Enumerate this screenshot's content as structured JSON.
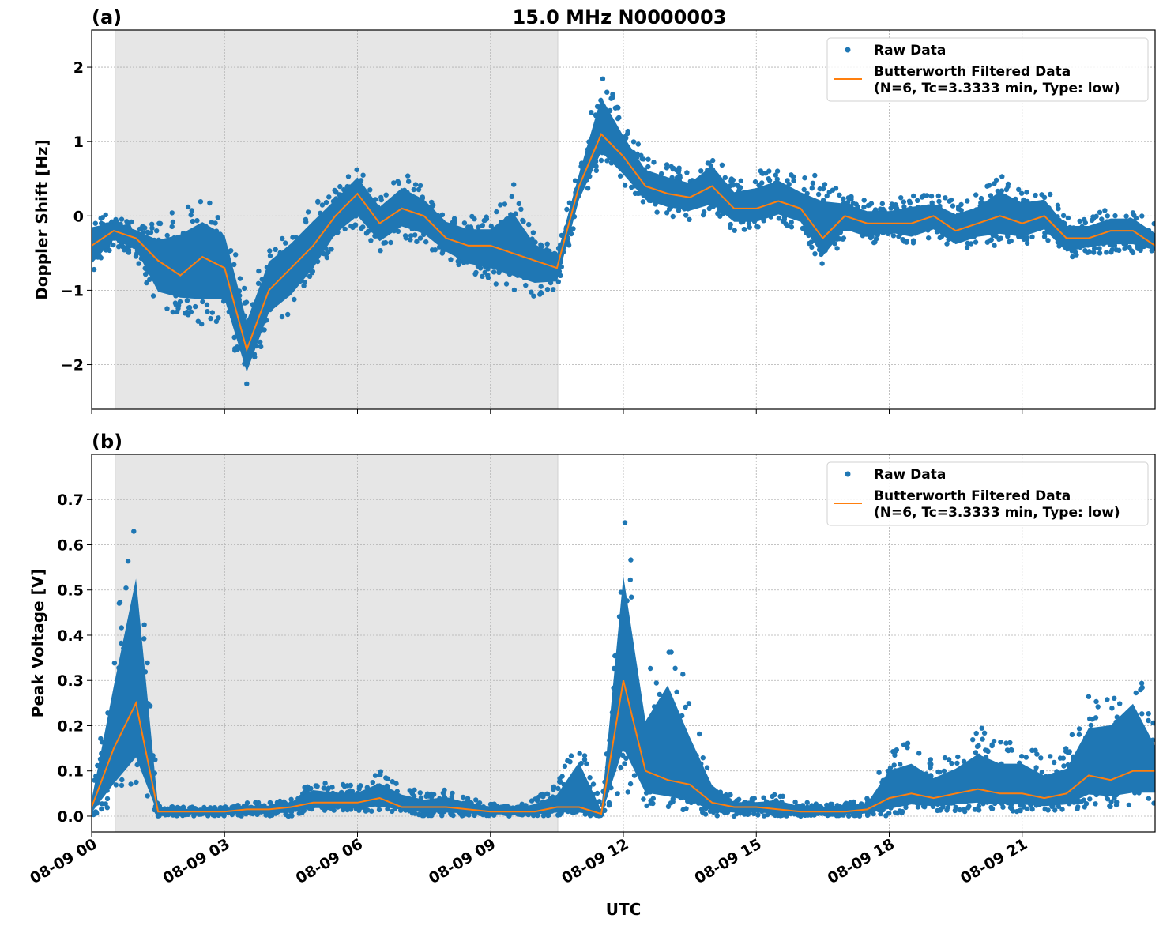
{
  "title": "15.0 MHz N0000003",
  "xlabel": "UTC",
  "colors": {
    "raw": "#1f77b4",
    "filtered": "#ff7f0e",
    "shade": "#e6e6e6"
  },
  "legend": {
    "raw": "Raw Data",
    "filtered_line1": "Butterworth Filtered Data",
    "filtered_line2": "(N=6, Tc=3.3333 min, Type: low)"
  },
  "chart_data": [
    {
      "type": "scatter+line",
      "panel_label": "(a)",
      "ylabel": "Doppler Shift [Hz]",
      "xlim_hours_utc": [
        0,
        24
      ],
      "ylim": [
        -2.6,
        2.5
      ],
      "yticks": [
        2,
        1,
        0,
        -1,
        -2
      ],
      "ytick_labels": [
        "2",
        "1",
        "0",
        "−1",
        "−2"
      ],
      "grid": true,
      "legend_position": "top-right",
      "shaded_interval_hours_utc": [
        0.53,
        10.52
      ],
      "x_hours": [
        0,
        0.5,
        1,
        1.5,
        2,
        2.5,
        3,
        3.5,
        4,
        4.5,
        5,
        5.5,
        6,
        6.5,
        7,
        7.5,
        8,
        8.5,
        9,
        9.5,
        10,
        10.5,
        11,
        11.5,
        12,
        12.5,
        13,
        13.5,
        14,
        14.5,
        15,
        15.5,
        16,
        16.5,
        17,
        17.5,
        18,
        18.5,
        19,
        19.5,
        20,
        20.5,
        21,
        21.5,
        22,
        22.5,
        23,
        23.5,
        24
      ],
      "series": [
        {
          "name": "Butterworth Filtered Data",
          "values": [
            -0.4,
            -0.2,
            -0.3,
            -0.6,
            -0.8,
            -0.55,
            -0.7,
            -1.8,
            -1.0,
            -0.7,
            -0.4,
            0.0,
            0.3,
            -0.1,
            0.1,
            0.0,
            -0.3,
            -0.4,
            -0.4,
            -0.5,
            -0.6,
            -0.7,
            0.4,
            1.1,
            0.8,
            0.4,
            0.3,
            0.25,
            0.4,
            0.1,
            0.1,
            0.2,
            0.1,
            -0.3,
            0.0,
            -0.1,
            -0.1,
            -0.1,
            0.0,
            -0.2,
            -0.1,
            0.0,
            -0.1,
            0.0,
            -0.3,
            -0.3,
            -0.2,
            -0.2,
            -0.4
          ]
        },
        {
          "name": "Raw Data",
          "low": [
            -0.8,
            -0.4,
            -0.55,
            -1.3,
            -1.3,
            -1.5,
            -1.4,
            -2.3,
            -1.5,
            -1.3,
            -0.9,
            -0.4,
            -0.2,
            -0.5,
            -0.3,
            -0.4,
            -0.6,
            -0.8,
            -0.9,
            -1.0,
            -1.1,
            -1.0,
            0.1,
            0.7,
            0.4,
            0.1,
            0.0,
            -0.05,
            0.0,
            -0.2,
            -0.2,
            -0.1,
            -0.2,
            -0.7,
            -0.3,
            -0.4,
            -0.3,
            -0.4,
            -0.3,
            -0.5,
            -0.4,
            -0.4,
            -0.4,
            -0.3,
            -0.6,
            -0.5,
            -0.5,
            -0.5,
            -0.5
          ],
          "high": [
            0.05,
            0.0,
            -0.1,
            -0.1,
            0.2,
            0.3,
            0.1,
            -1.1,
            -0.3,
            -0.1,
            0.2,
            0.4,
            0.7,
            0.3,
            0.6,
            0.4,
            0.1,
            0.0,
            0.0,
            0.5,
            -0.2,
            -0.4,
            0.7,
            2.0,
            1.3,
            0.8,
            0.7,
            0.6,
            0.9,
            0.5,
            0.6,
            0.7,
            0.5,
            0.6,
            0.3,
            0.2,
            0.2,
            0.3,
            0.3,
            0.2,
            0.3,
            0.6,
            0.4,
            0.4,
            0.0,
            0.0,
            0.1,
            0.1,
            -0.1
          ]
        }
      ]
    },
    {
      "type": "scatter+line",
      "panel_label": "(b)",
      "ylabel": "Peak Voltage [V]",
      "xlim_hours_utc": [
        0,
        24
      ],
      "ylim": [
        -0.035,
        0.8
      ],
      "yticks": [
        0.7,
        0.6,
        0.5,
        0.4,
        0.3,
        0.2,
        0.1,
        0.0
      ],
      "ytick_labels": [
        "0.7",
        "0.6",
        "0.5",
        "0.4",
        "0.3",
        "0.2",
        "0.1",
        "0.0"
      ],
      "grid": true,
      "legend_position": "top-right",
      "shaded_interval_hours_utc": [
        0.53,
        10.52
      ],
      "x_hours": [
        0,
        0.5,
        1,
        1.5,
        2,
        2.5,
        3,
        3.5,
        4,
        4.5,
        5,
        5.5,
        6,
        6.5,
        7,
        7.5,
        8,
        8.5,
        9,
        9.5,
        10,
        10.5,
        11,
        11.5,
        12,
        12.5,
        13,
        13.5,
        14,
        14.5,
        15,
        15.5,
        16,
        16.5,
        17,
        17.5,
        18,
        18.5,
        19,
        19.5,
        20,
        20.5,
        21,
        21.5,
        22,
        22.5,
        23,
        23.5,
        24
      ],
      "series": [
        {
          "name": "Butterworth Filtered Data",
          "values": [
            0.02,
            0.15,
            0.25,
            0.01,
            0.01,
            0.01,
            0.01,
            0.015,
            0.015,
            0.02,
            0.03,
            0.03,
            0.03,
            0.04,
            0.02,
            0.02,
            0.02,
            0.015,
            0.01,
            0.01,
            0.01,
            0.02,
            0.02,
            0.005,
            0.3,
            0.1,
            0.08,
            0.07,
            0.03,
            0.02,
            0.02,
            0.015,
            0.01,
            0.01,
            0.01,
            0.015,
            0.04,
            0.05,
            0.04,
            0.05,
            0.06,
            0.05,
            0.05,
            0.04,
            0.05,
            0.09,
            0.08,
            0.1,
            0.1
          ]
        },
        {
          "name": "Raw Data",
          "low": [
            0,
            0.02,
            0.05,
            0,
            0,
            0,
            0,
            0,
            0,
            0,
            0.01,
            0.01,
            0.01,
            0.01,
            0.01,
            0,
            0,
            0,
            0,
            0,
            0,
            0,
            0,
            0,
            0.05,
            0.02,
            0.02,
            0.01,
            0,
            0,
            0,
            0,
            0,
            0,
            0,
            0,
            0,
            0.01,
            0.01,
            0.01,
            0.01,
            0.01,
            0.01,
            0.01,
            0.01,
            0.02,
            0.02,
            0.02,
            0.02
          ],
          "high": [
            0.05,
            0.4,
            0.75,
            0.03,
            0.02,
            0.02,
            0.02,
            0.03,
            0.03,
            0.04,
            0.08,
            0.07,
            0.07,
            0.1,
            0.07,
            0.05,
            0.06,
            0.04,
            0.03,
            0.02,
            0.04,
            0.07,
            0.2,
            0.02,
            0.72,
            0.3,
            0.46,
            0.26,
            0.1,
            0.04,
            0.04,
            0.05,
            0.03,
            0.03,
            0.03,
            0.04,
            0.15,
            0.17,
            0.12,
            0.15,
            0.2,
            0.17,
            0.17,
            0.13,
            0.15,
            0.28,
            0.3,
            0.37,
            0.2
          ]
        }
      ]
    }
  ],
  "xticks_hours": [
    0,
    3,
    6,
    9,
    12,
    15,
    18,
    21
  ],
  "xtick_labels": [
    "08-09 00",
    "08-09 03",
    "08-09 06",
    "08-09 09",
    "08-09 12",
    "08-09 15",
    "08-09 18",
    "08-09 21"
  ]
}
